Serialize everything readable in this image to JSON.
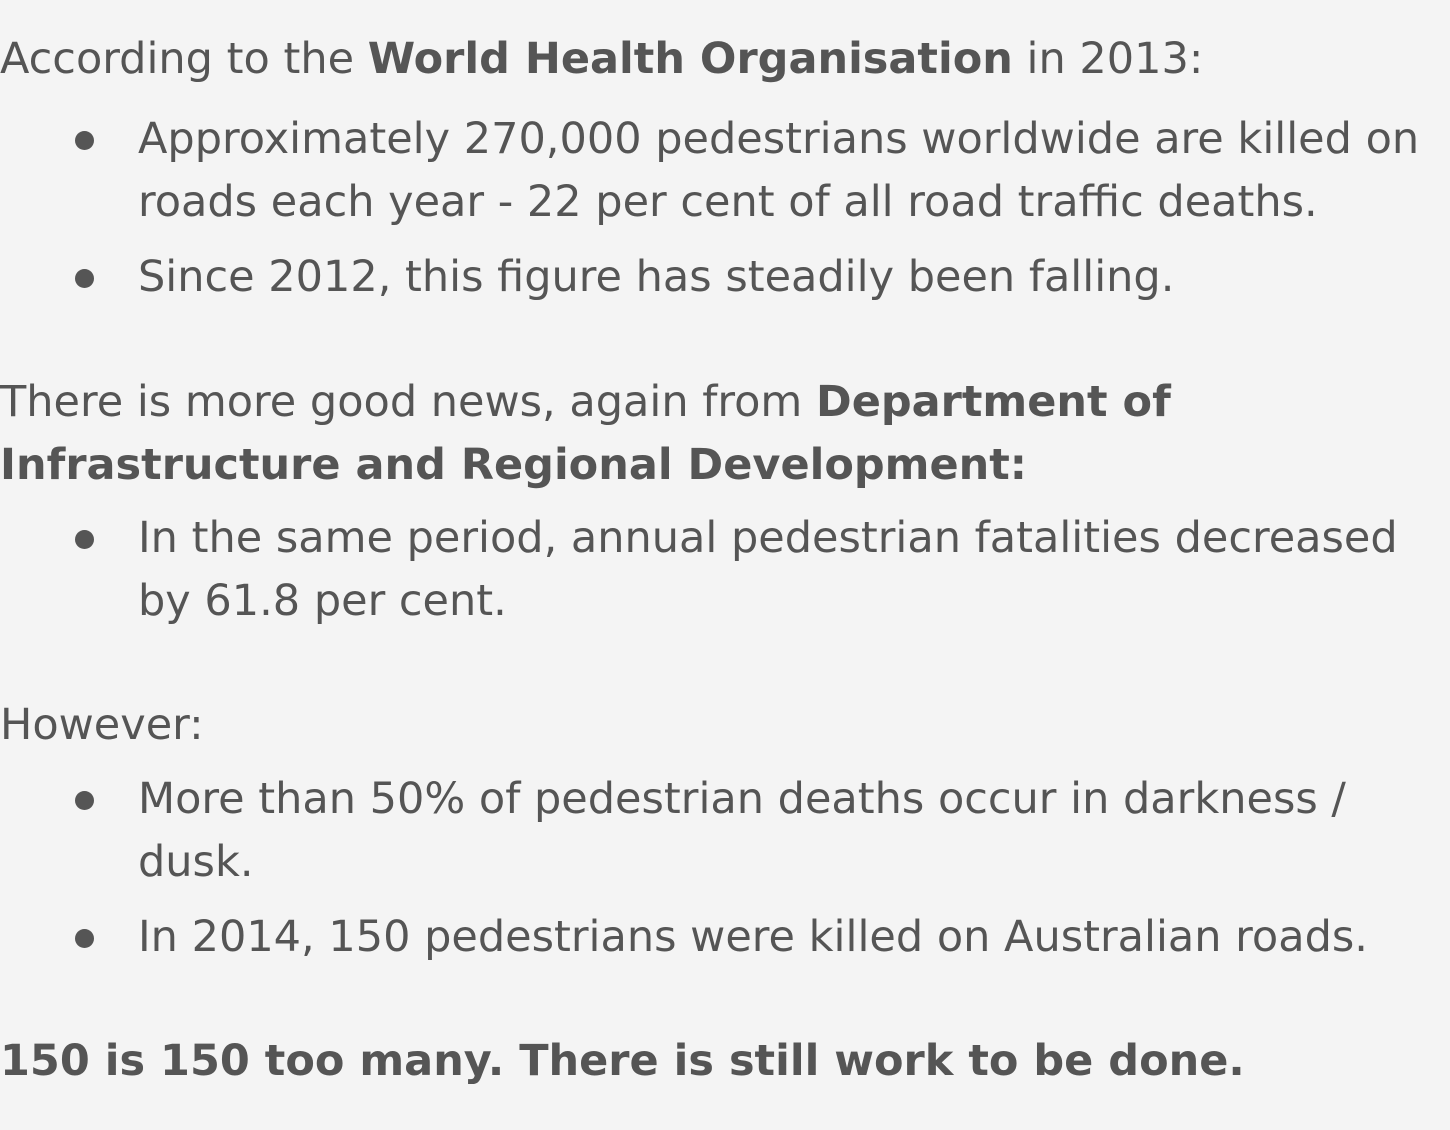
{
  "section1": {
    "intro_prefix": "According to the ",
    "intro_bold": "World Health Organisation",
    "intro_suffix": " in 2013:",
    "bullets": [
      {
        "line1": "Approximately 270,000 pedestrians worldwide are killed on",
        "line2": "roads each year - 22 per cent of all road traffic deaths."
      },
      {
        "line1": "Since 2012, this figure has steadily been falling."
      }
    ]
  },
  "section2": {
    "intro_prefix": "There is more good news, again from ",
    "intro_bold_line1": "Department of",
    "intro_bold_line2": "Infrastructure and Regional Development:",
    "bullets": [
      {
        "line1": "In the same period, annual pedestrian fatalities decreased",
        "line2": "by 61.8 per cent."
      }
    ]
  },
  "section3": {
    "intro": "However:",
    "bullets": [
      {
        "line1": "More than 50% of pedestrian deaths occur in darkness /",
        "line2": "dusk."
      },
      {
        "line1": "In 2014, 150 pedestrians were killed on Australian roads."
      }
    ]
  },
  "closing": {
    "text": "150 is 150 too many. There is still work to be done."
  }
}
